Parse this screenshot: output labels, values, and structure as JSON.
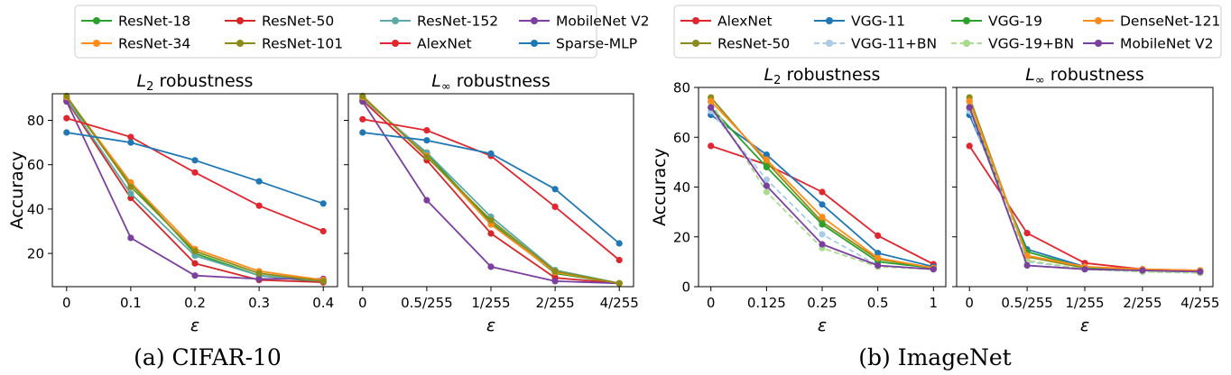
{
  "captions": {
    "cifar": "(a) CIFAR-10",
    "imagenet": "(b) ImageNet"
  },
  "chart_data": [
    {
      "type": "line",
      "title_prefix": "L",
      "title_sub": "2",
      "title_rest": " robustness",
      "xlabel": "ε",
      "ylabel": "Accuracy",
      "x": [
        "0",
        "0.1",
        "0.2",
        "0.3",
        "0.4"
      ],
      "ylim": [
        5,
        92
      ],
      "yticks": [
        20,
        40,
        60,
        80
      ],
      "series": [
        {
          "name": "ResNet-18",
          "color": "#2ca02c",
          "dash": false,
          "values": [
            90.0,
            51.5,
            20.0,
            10.0,
            7.0
          ]
        },
        {
          "name": "ResNet-50",
          "color": "#d62728",
          "dash": false,
          "values": [
            89.0,
            45.0,
            15.5,
            8.0,
            7.0
          ]
        },
        {
          "name": "ResNet-152",
          "color": "#5fa8a8",
          "dash": false,
          "values": [
            89.5,
            47.0,
            19.0,
            10.0,
            7.5
          ]
        },
        {
          "name": "MobileNet V2",
          "color": "#7b3f9e",
          "dash": false,
          "values": [
            88.5,
            27.0,
            10.0,
            8.5,
            8.5
          ]
        },
        {
          "name": "ResNet-34",
          "color": "#ff8c1a",
          "dash": false,
          "values": [
            90.5,
            52.0,
            22.0,
            12.0,
            8.0
          ]
        },
        {
          "name": "ResNet-101",
          "color": "#8c8c1a",
          "dash": false,
          "values": [
            91.0,
            50.0,
            21.0,
            11.0,
            7.5
          ]
        },
        {
          "name": "AlexNet",
          "color": "#e0262f",
          "dash": false,
          "values": [
            81.0,
            72.5,
            56.5,
            41.5,
            30.0
          ]
        },
        {
          "name": "Sparse-MLP",
          "color": "#1f77b4",
          "dash": false,
          "values": [
            74.5,
            70.0,
            62.0,
            52.5,
            42.5
          ]
        }
      ]
    },
    {
      "type": "line",
      "title_prefix": "L",
      "title_sub": "∞",
      "title_rest": " robustness",
      "xlabel": "ε",
      "ylabel": "",
      "x": [
        "0",
        "0.5/255",
        "1/255",
        "2/255",
        "4/255"
      ],
      "ylim": [
        5,
        92
      ],
      "yticks": [
        20,
        40,
        60,
        80
      ],
      "series": [
        {
          "name": "ResNet-18",
          "color": "#2ca02c",
          "dash": false,
          "values": [
            90.0,
            65.0,
            34.0,
            11.0,
            6.5
          ]
        },
        {
          "name": "ResNet-50",
          "color": "#d62728",
          "dash": false,
          "values": [
            89.0,
            62.0,
            29.0,
            9.0,
            6.5
          ]
        },
        {
          "name": "ResNet-152",
          "color": "#5fa8a8",
          "dash": false,
          "values": [
            89.5,
            65.5,
            36.5,
            12.5,
            6.5
          ]
        },
        {
          "name": "MobileNet V2",
          "color": "#7b3f9e",
          "dash": false,
          "values": [
            88.5,
            44.0,
            14.0,
            7.5,
            6.5
          ]
        },
        {
          "name": "ResNet-34",
          "color": "#ff8c1a",
          "dash": false,
          "values": [
            90.5,
            64.0,
            33.0,
            11.5,
            6.5
          ]
        },
        {
          "name": "ResNet-101",
          "color": "#8c8c1a",
          "dash": false,
          "values": [
            91.0,
            63.5,
            35.0,
            12.0,
            6.5
          ]
        },
        {
          "name": "AlexNet",
          "color": "#e0262f",
          "dash": false,
          "values": [
            80.5,
            75.5,
            64.0,
            41.0,
            17.0
          ]
        },
        {
          "name": "Sparse-MLP",
          "color": "#1f77b4",
          "dash": false,
          "values": [
            74.5,
            71.0,
            65.0,
            49.0,
            24.5
          ]
        }
      ]
    },
    {
      "type": "line",
      "title_prefix": "L",
      "title_sub": "2",
      "title_rest": " robustness",
      "xlabel": "ε",
      "ylabel": "Accuracy",
      "x": [
        "0",
        "0.125",
        "0.25",
        "0.5",
        "1"
      ],
      "ylim": [
        0,
        80
      ],
      "yticks": [
        0,
        20,
        40,
        60,
        80
      ],
      "series": [
        {
          "name": "AlexNet",
          "color": "#e0262f",
          "dash": false,
          "values": [
            56.5,
            49.0,
            38.0,
            20.5,
            9.0
          ]
        },
        {
          "name": "ResNet-50",
          "color": "#8c8c1a",
          "dash": false,
          "values": [
            76.0,
            50.0,
            26.0,
            11.0,
            7.5
          ]
        },
        {
          "name": "VGG-11",
          "color": "#1f77b4",
          "dash": false,
          "values": [
            69.0,
            53.0,
            33.0,
            13.5,
            8.0
          ]
        },
        {
          "name": "VGG-11+BN",
          "color": "#a9cbe8",
          "dash": true,
          "values": [
            70.5,
            43.0,
            21.0,
            8.5,
            7.0
          ]
        },
        {
          "name": "VGG-19",
          "color": "#2ca02c",
          "dash": false,
          "values": [
            72.0,
            48.0,
            25.0,
            10.0,
            7.5
          ]
        },
        {
          "name": "VGG-19+BN",
          "color": "#a8dc8c",
          "dash": true,
          "values": [
            74.0,
            38.0,
            15.5,
            8.0,
            7.0
          ]
        },
        {
          "name": "DenseNet-121",
          "color": "#ff8c1a",
          "dash": false,
          "values": [
            74.5,
            51.0,
            28.0,
            11.5,
            7.5
          ]
        },
        {
          "name": "MobileNet V2",
          "color": "#7b3f9e",
          "dash": false,
          "values": [
            72.0,
            40.5,
            17.0,
            8.5,
            7.0
          ]
        }
      ]
    },
    {
      "type": "line",
      "title_prefix": "L",
      "title_sub": "∞",
      "title_rest": " robustness",
      "xlabel": "ε",
      "ylabel": "",
      "x": [
        "0",
        "0.5/255",
        "1/255",
        "2/255",
        "4/255"
      ],
      "ylim": [
        0,
        80
      ],
      "yticks": [
        0,
        20,
        40,
        60,
        80
      ],
      "series": [
        {
          "name": "AlexNet",
          "color": "#e0262f",
          "dash": false,
          "values": [
            56.5,
            21.5,
            9.5,
            7.0,
            6.5
          ]
        },
        {
          "name": "ResNet-50",
          "color": "#8c8c1a",
          "dash": false,
          "values": [
            76.0,
            12.0,
            7.5,
            6.5,
            6.0
          ]
        },
        {
          "name": "VGG-11",
          "color": "#1f77b4",
          "dash": false,
          "values": [
            69.0,
            15.0,
            8.0,
            6.5,
            6.0
          ]
        },
        {
          "name": "VGG-11+BN",
          "color": "#a9cbe8",
          "dash": true,
          "values": [
            70.5,
            10.0,
            7.0,
            6.0,
            5.5
          ]
        },
        {
          "name": "VGG-19",
          "color": "#2ca02c",
          "dash": false,
          "values": [
            72.0,
            14.0,
            7.5,
            6.5,
            6.0
          ]
        },
        {
          "name": "VGG-19+BN",
          "color": "#a8dc8c",
          "dash": true,
          "values": [
            74.0,
            10.5,
            7.0,
            6.0,
            5.5
          ]
        },
        {
          "name": "DenseNet-121",
          "color": "#ff8c1a",
          "dash": false,
          "values": [
            74.5,
            12.5,
            8.0,
            7.0,
            6.5
          ]
        },
        {
          "name": "MobileNet V2",
          "color": "#7b3f9e",
          "dash": false,
          "values": [
            72.0,
            8.5,
            7.0,
            6.5,
            6.0
          ]
        }
      ]
    }
  ],
  "legends": [
    {
      "entries": [
        [
          "ResNet-18",
          "ResNet-50",
          "ResNet-152",
          "MobileNet V2"
        ],
        [
          "ResNet-34",
          "ResNet-101",
          "AlexNet",
          "Sparse-MLP"
        ]
      ]
    },
    {
      "entries": [
        [
          "AlexNet",
          "VGG-11",
          "VGG-19",
          "DenseNet-121"
        ],
        [
          "ResNet-50",
          "VGG-11+BN",
          "VGG-19+BN",
          "MobileNet V2"
        ]
      ]
    }
  ]
}
